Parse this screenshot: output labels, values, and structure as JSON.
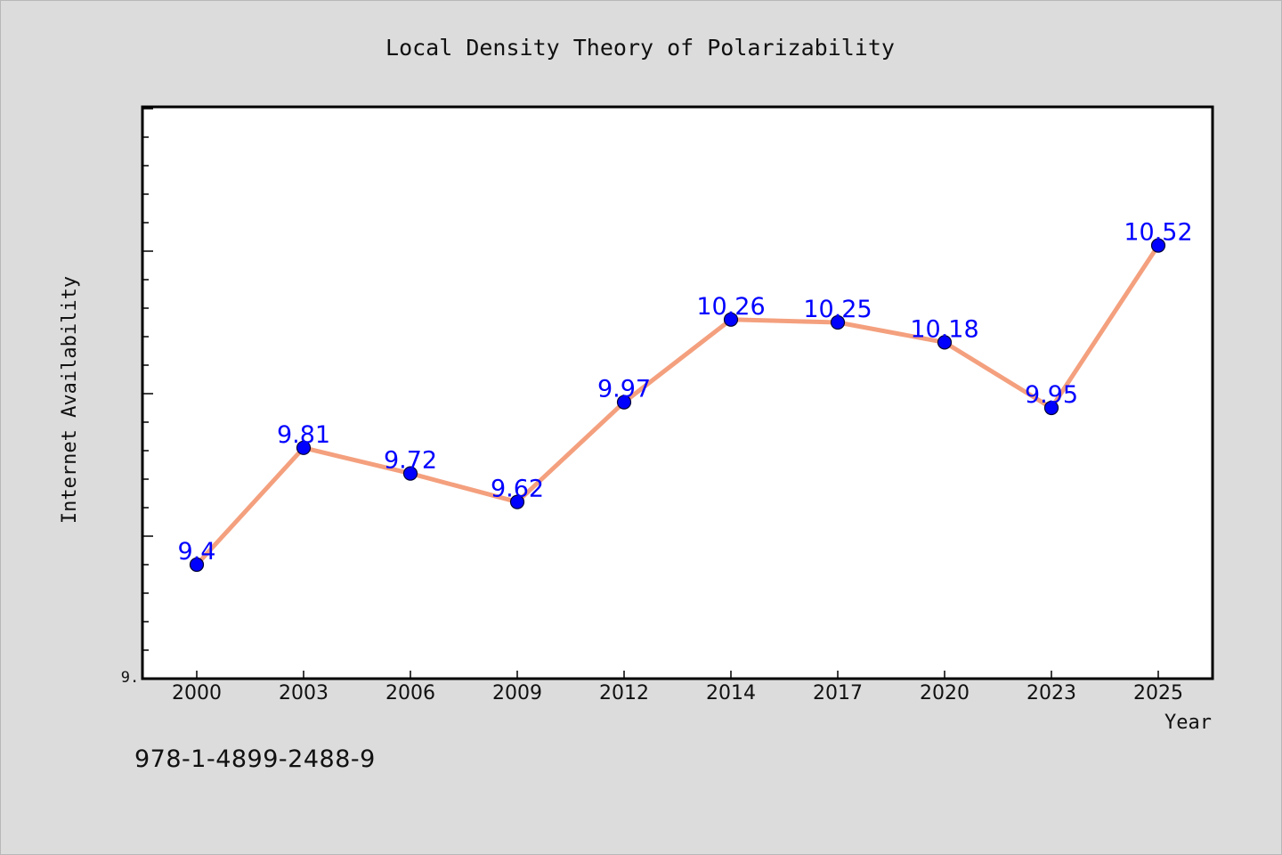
{
  "chart_data": {
    "type": "line",
    "title": "Local Density Theory of Polarizability",
    "xlabel": "Year",
    "ylabel": "Internet Availability",
    "categories": [
      "2000",
      "2003",
      "2006",
      "2009",
      "2012",
      "2014",
      "2017",
      "2020",
      "2023",
      "2025"
    ],
    "series": [
      {
        "values": [
          9.4,
          9.81,
          9.72,
          9.62,
          9.97,
          10.26,
          10.25,
          10.18,
          9.95,
          10.52
        ]
      }
    ],
    "data_labels": [
      "9.4",
      "9.81",
      "9.72",
      "9.62",
      "9.97",
      "10.26",
      "10.25",
      "10.18",
      "9.95",
      "10.52"
    ],
    "y_tick_label": "9.",
    "ylim": [
      9.0,
      11.0
    ],
    "y_minor_step": 0.1,
    "grid": false,
    "colors": {
      "line": "#f4a07e",
      "marker": "#0000ff",
      "label": "#0000ff",
      "background": "#dcdcdc",
      "plot_background": "#ffffff"
    }
  },
  "footer": {
    "isbn": "978-1-4899-2488-9"
  }
}
